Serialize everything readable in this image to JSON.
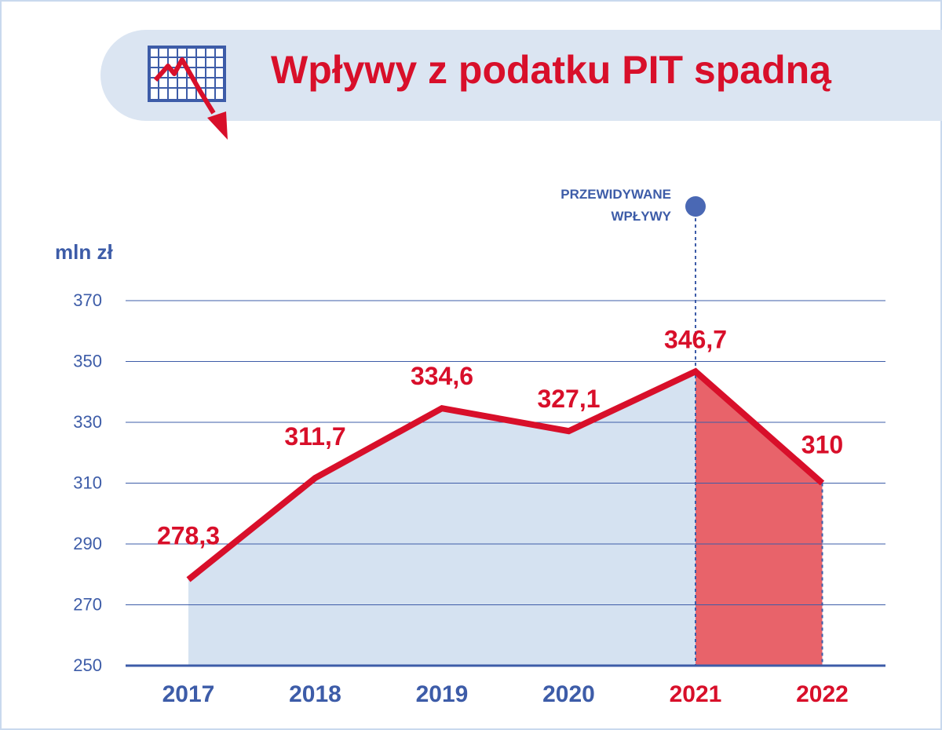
{
  "title": "Wpływy z podatku PIT spadną",
  "colors": {
    "accent": "#d80f2a",
    "axis_text": "#3d5ca8",
    "area_fill": "#d5e2f1",
    "forecast_fill": "#e8636a",
    "banner": "#dbe5f2"
  },
  "icon": "falling-chart-icon",
  "chart_data": {
    "type": "area",
    "title": "Wpływy z podatku PIT spadną",
    "ylabel": "mln zł",
    "xlabel": "",
    "ylim": [
      250,
      370
    ],
    "yticks": [
      250,
      270,
      290,
      310,
      330,
      350,
      370
    ],
    "grid": true,
    "categories": [
      "2017",
      "2018",
      "2019",
      "2020",
      "2021",
      "2022"
    ],
    "values": [
      278.3,
      311.7,
      334.6,
      327.1,
      346.7,
      310
    ],
    "labels": [
      "278,3",
      "311,7",
      "334,6",
      "327,1",
      "346,7",
      "310"
    ],
    "forecast_from": "2021",
    "forecast_label": [
      "PRZEWIDYWANE",
      "WPŁYWY"
    ]
  }
}
